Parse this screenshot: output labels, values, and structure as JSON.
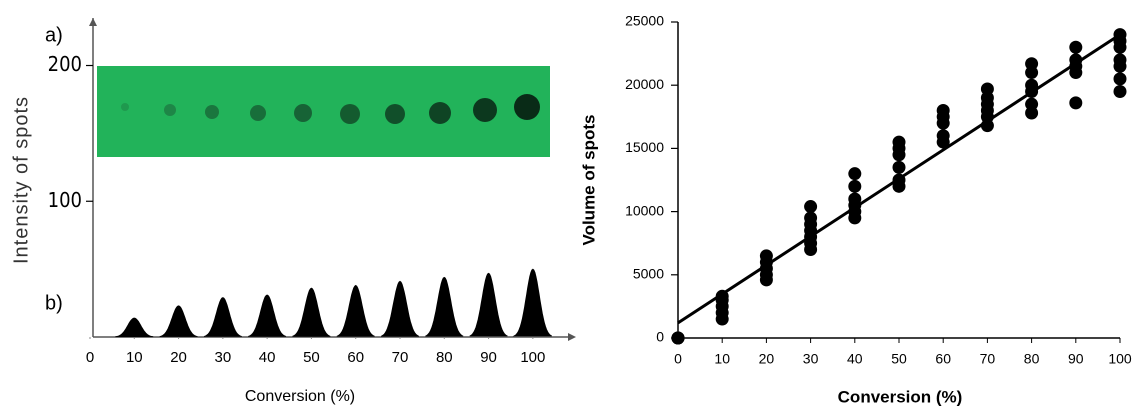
{
  "chart_data": [
    {
      "type": "peaks",
      "annotations": [
        "a)",
        "b)"
      ],
      "x_label": "Conversion (%)",
      "y_label": "Intensity of spots",
      "x": [
        10,
        20,
        30,
        40,
        50,
        60,
        70,
        80,
        90,
        100
      ],
      "values": [
        14,
        23,
        29,
        31,
        36,
        38,
        41,
        44,
        47,
        50
      ],
      "color": "#000000",
      "xlim": [
        0,
        105
      ],
      "xticks": [
        0,
        10,
        20,
        30,
        40,
        50,
        60,
        70,
        80,
        90,
        100
      ],
      "ylim": [
        0,
        235
      ],
      "yticks": [
        100,
        200
      ]
    },
    {
      "type": "scatter",
      "x_label": "Conversion (%)",
      "y_label": "Volume of spots",
      "x": [
        0,
        0,
        0,
        10,
        10,
        10,
        10,
        10,
        20,
        20,
        20,
        20,
        20,
        30,
        30,
        30,
        30,
        30,
        30,
        30,
        40,
        40,
        40,
        40,
        40,
        40,
        50,
        50,
        50,
        50,
        50,
        50,
        60,
        60,
        60,
        60,
        60,
        70,
        70,
        70,
        70,
        70,
        70,
        80,
        80,
        80,
        80,
        80,
        80,
        90,
        90,
        90,
        90,
        90,
        100,
        100,
        100,
        100,
        100,
        100,
        100
      ],
      "values": [
        0,
        0,
        0,
        1500,
        2000,
        2500,
        3000,
        3300,
        4600,
        5000,
        5500,
        6000,
        6500,
        7000,
        7500,
        8000,
        8500,
        9000,
        9500,
        10400,
        9500,
        10000,
        10500,
        11000,
        12000,
        13000,
        12000,
        12500,
        13500,
        14500,
        15000,
        15500,
        15500,
        16000,
        17000,
        17500,
        18000,
        16800,
        17500,
        18000,
        18500,
        19000,
        19700,
        17800,
        18500,
        19500,
        20000,
        21000,
        21700,
        18600,
        21000,
        21500,
        22000,
        23000,
        19500,
        20500,
        21500,
        22000,
        23000,
        23500,
        24000
      ],
      "color": "#000000",
      "trendline": {
        "x": [
          0,
          100
        ],
        "values": [
          1200,
          24000
        ]
      },
      "xlim": [
        0,
        100
      ],
      "xticks": [
        0,
        10,
        20,
        30,
        40,
        50,
        60,
        70,
        80,
        90,
        100
      ],
      "ylim": [
        0,
        25000
      ],
      "yticks": [
        0,
        5000,
        10000,
        15000,
        20000,
        25000
      ]
    }
  ]
}
